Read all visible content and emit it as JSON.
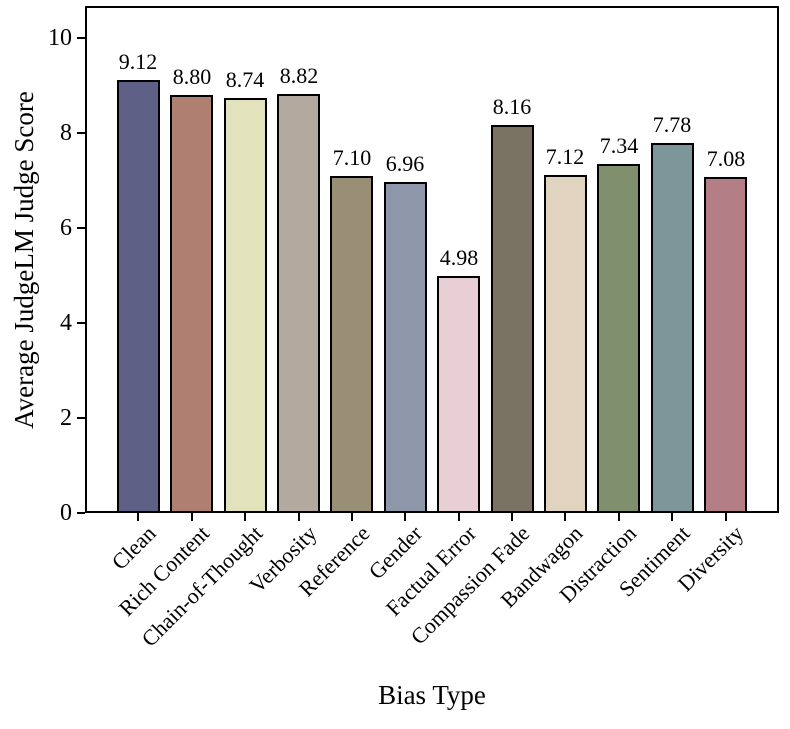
{
  "chart_data": {
    "type": "bar",
    "title": "",
    "xlabel": "Bias Type",
    "ylabel": "Average JudgeLM Judge Score",
    "categories": [
      "Clean",
      "Rich Content",
      "Chain-of-Thought",
      "Verbosity",
      "Reference",
      "Gender",
      "Factual Error",
      "Compassion Fade",
      "Bandwagon",
      "Distraction",
      "Sentiment",
      "Diversity"
    ],
    "values": [
      9.12,
      8.8,
      8.74,
      8.82,
      7.1,
      6.96,
      4.98,
      8.16,
      7.12,
      7.34,
      7.78,
      7.08
    ],
    "value_labels": [
      "9.12",
      "8.80",
      "8.74",
      "8.82",
      "7.10",
      "6.96",
      "4.98",
      "8.16",
      "7.12",
      "7.34",
      "7.78",
      "7.08"
    ],
    "bar_colors": [
      "#5f6086",
      "#af8072",
      "#e2e2bd",
      "#b4a99e",
      "#998f77",
      "#8d97a9",
      "#e7cfd5",
      "#7a7263",
      "#e0d3bf",
      "#80906f",
      "#7d969a",
      "#b37e86"
    ],
    "edge_color": "#000000",
    "text_color": "#000000",
    "background_color": "#ffffff",
    "yticks": [
      0,
      2,
      4,
      6,
      8,
      10
    ],
    "ylim": [
      0,
      10.67
    ],
    "xtick_rotation_deg": 45,
    "grid": false,
    "legend": null,
    "axes_box": true
  }
}
